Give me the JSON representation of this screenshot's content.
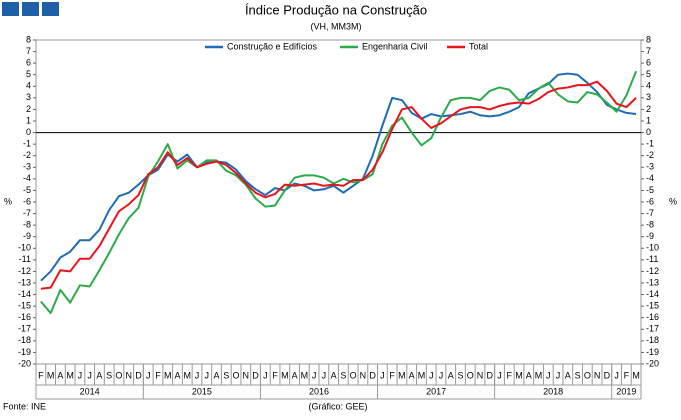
{
  "chart_data": {
    "type": "line",
    "title": "Índice Produção na Construção",
    "subtitle": "(VH, MM3M)",
    "y_label": "%",
    "source": "Fonte: INE",
    "credit": "(Gráfico: GEE)",
    "category_groups": [
      {
        "label": "2014",
        "categories": [
          "F",
          "M",
          "A",
          "M",
          "J",
          "J",
          "A",
          "S",
          "O",
          "N",
          "D"
        ]
      },
      {
        "label": "2015",
        "categories": [
          "J",
          "F",
          "M",
          "A",
          "M",
          "J",
          "J",
          "A",
          "S",
          "O",
          "N",
          "D"
        ]
      },
      {
        "label": "2016",
        "categories": [
          "J",
          "F",
          "M",
          "A",
          "M",
          "J",
          "J",
          "A",
          "S",
          "O",
          "N",
          "D"
        ]
      },
      {
        "label": "2017",
        "categories": [
          "J",
          "F",
          "M",
          "A",
          "M",
          "J",
          "J",
          "A",
          "S",
          "O",
          "N",
          "D"
        ]
      },
      {
        "label": "2018",
        "categories": [
          "J",
          "F",
          "M",
          "A",
          "M",
          "J",
          "J",
          "A",
          "S",
          "O",
          "N",
          "D"
        ]
      },
      {
        "label": "2019",
        "categories": [
          "J",
          "F",
          "M"
        ]
      }
    ],
    "series": [
      {
        "name": "Construção e Edifícios",
        "color": "#1f6cb5",
        "values": [
          -12.8,
          -12,
          -10.8,
          -10.3,
          -9.3,
          -9.3,
          -8.4,
          -6.7,
          -5.5,
          -5.2,
          -4.5,
          -3.7,
          -3.2,
          -1.9,
          -2.5,
          -1.9,
          -3,
          -2.6,
          -2.5,
          -2.6,
          -3.2,
          -4.2,
          -4.9,
          -5.4,
          -4.8,
          -5,
          -4.4,
          -4.6,
          -5,
          -4.9,
          -4.6,
          -5.2,
          -4.6,
          -4,
          -2,
          0.6,
          3,
          2.8,
          1.7,
          1.2,
          1.6,
          1.4,
          1.5,
          1.6,
          1.8,
          1.5,
          1.4,
          1.5,
          1.8,
          2.2,
          3.4,
          3.8,
          4.2,
          5,
          5.1,
          5,
          4.3,
          3.5,
          2.4,
          2,
          1.7,
          1.6
        ]
      },
      {
        "name": "Engenharia Civil",
        "color": "#2bab4a",
        "values": [
          -14.6,
          -15.6,
          -13.6,
          -14.7,
          -13.2,
          -13.3,
          -11.9,
          -10.4,
          -8.8,
          -7.4,
          -6.5,
          -3.8,
          -2.5,
          -1,
          -3.1,
          -2.4,
          -3,
          -2.4,
          -2.4,
          -3.3,
          -3.7,
          -4.5,
          -5.7,
          -6.4,
          -6.3,
          -5,
          -3.9,
          -3.7,
          -3.7,
          -3.9,
          -4.4,
          -4,
          -4.3,
          -4.1,
          -3.6,
          -1,
          0.6,
          1.3,
          0,
          -1.1,
          -0.5,
          1.3,
          2.8,
          3,
          3,
          2.8,
          3.6,
          3.9,
          3.7,
          2.8,
          3,
          3.8,
          4.3,
          3.3,
          2.7,
          2.6,
          3.5,
          3.3,
          2.6,
          1.8,
          3.2,
          5.3
        ]
      },
      {
        "name": "Total",
        "color": "#e8141c",
        "values": [
          -13.5,
          -13.4,
          -11.9,
          -12,
          -10.9,
          -10.9,
          -9.8,
          -8.3,
          -6.8,
          -6.2,
          -5.4,
          -3.6,
          -3,
          -1.7,
          -2.8,
          -2.2,
          -3,
          -2.7,
          -2.5,
          -2.8,
          -3.5,
          -4.4,
          -5.2,
          -5.6,
          -5.3,
          -4.5,
          -4.6,
          -4.5,
          -4.4,
          -4.6,
          -4.5,
          -4.6,
          -4.1,
          -4.1,
          -3.2,
          -1.7,
          0.3,
          2,
          2.2,
          1.2,
          0.4,
          0.8,
          1.4,
          2,
          2.2,
          2.2,
          2,
          2.3,
          2.5,
          2.6,
          2.5,
          2.9,
          3.5,
          3.8,
          3.9,
          4.1,
          4.1,
          4.4,
          3.6,
          2.5,
          2.2,
          3
        ]
      }
    ],
    "ylim": [
      -20,
      8
    ],
    "yticks": [
      -20,
      -19,
      -18,
      -17,
      -16,
      -15,
      -14,
      -13,
      -12,
      -11,
      -10,
      -9,
      -8,
      -7,
      -6,
      -5,
      -4,
      -3,
      -2,
      -1,
      0,
      1,
      2,
      3,
      4,
      5,
      6,
      7,
      8
    ],
    "grid": false
  }
}
